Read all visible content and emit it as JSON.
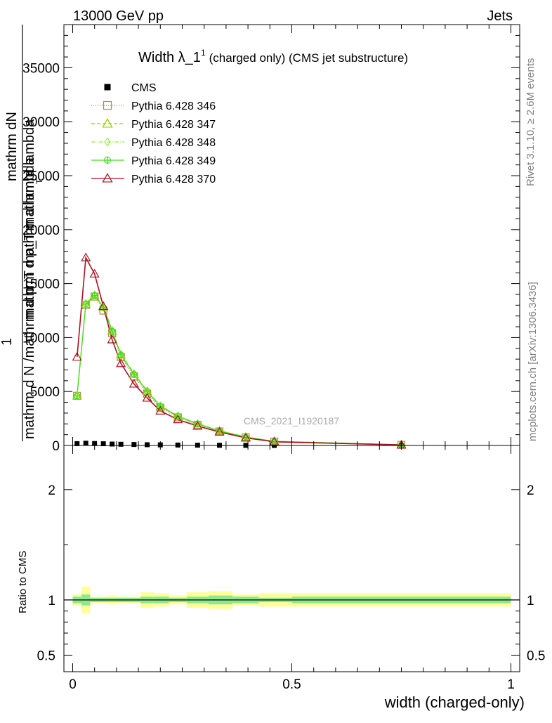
{
  "header": {
    "left": "13000 GeV pp",
    "right": "Jets",
    "side_rivet": "Rivet 3.1.10, ≥ 2.6M events",
    "side_mcplots": "mcplots.cern.ch [arXiv:1306.3436]",
    "watermark": "CMS_2021_I1920187"
  },
  "chart_data": [
    {
      "type": "line",
      "title_main": "Width λ_1",
      "title_sup": "1",
      "title_rest": "(charged only) (CMS jet substructure)",
      "ylabel_lines": [
        "mathrm d N /mathrm d p_T mathrm d lambda",
        "1",
        "mathrm dN",
        "mathrm d p_T mathrm d lambda",
        "T"
      ],
      "xlim": [
        -0.02,
        1.02
      ],
      "ylim": [
        0,
        39000
      ],
      "yticks": [
        0,
        5000,
        10000,
        15000,
        20000,
        25000,
        30000,
        35000
      ],
      "ytick_labels": [
        "0",
        "5000",
        "10000",
        "15000",
        "20000",
        "25000",
        "30000",
        "35000"
      ],
      "x": [
        0.01,
        0.03,
        0.05,
        0.07,
        0.09,
        0.11,
        0.14,
        0.17,
        0.2,
        0.24,
        0.285,
        0.335,
        0.395,
        0.46,
        0.75
      ],
      "series": [
        {
          "name": "CMS",
          "color": "#000000",
          "marker": "square-filled",
          "dash": "none",
          "values": [
            170,
            210,
            180,
            160,
            130,
            110,
            90,
            70,
            55,
            40,
            28,
            18,
            10,
            5,
            1
          ]
        },
        {
          "name": "Pythia 6.428 346",
          "color": "#b8864b",
          "marker": "square",
          "dash": "1,2",
          "values": [
            4600,
            13000,
            13800,
            12500,
            10400,
            8200,
            6400,
            4800,
            3500,
            2600,
            1900,
            1300,
            750,
            360,
            60
          ]
        },
        {
          "name": "Pythia 6.428 347",
          "color": "#99cc00",
          "marker": "triangle",
          "dash": "5,3",
          "values": [
            4600,
            13100,
            13900,
            12800,
            10600,
            8400,
            6600,
            5000,
            3600,
            2700,
            2000,
            1350,
            780,
            380,
            60
          ]
        },
        {
          "name": "Pythia 6.428 348",
          "color": "#99ee44",
          "marker": "diamond",
          "dash": "6,2,1,2",
          "values": [
            4700,
            13200,
            14000,
            12900,
            10700,
            8500,
            6700,
            5100,
            3700,
            2750,
            2050,
            1380,
            800,
            390,
            60
          ]
        },
        {
          "name": "Pythia 6.428 349",
          "color": "#44dd22",
          "marker": "circle-cross",
          "dash": "none",
          "values": [
            4600,
            13100,
            13900,
            12800,
            10600,
            8400,
            6600,
            5000,
            3650,
            2700,
            2000,
            1350,
            780,
            380,
            60
          ]
        },
        {
          "name": "Pythia 6.428 370",
          "color": "#aa1122",
          "marker": "triangle",
          "dash": "none",
          "values": [
            8200,
            17400,
            15900,
            12900,
            9800,
            7600,
            5700,
            4400,
            3200,
            2400,
            1800,
            1250,
            700,
            340,
            50
          ]
        }
      ]
    },
    {
      "type": "area",
      "ylabel": "Ratio to CMS",
      "xlabel": "width (charged-only)",
      "xlim": [
        -0.02,
        1.02
      ],
      "ylim": [
        0.35,
        2.4
      ],
      "yticks": [
        0.5,
        1,
        2
      ],
      "ytick_labels": [
        "0.5",
        "1",
        "2"
      ],
      "xticks": [
        0,
        0.5,
        1
      ],
      "xtick_labels": [
        "0",
        "0.5",
        "1"
      ],
      "bins": [
        0.0,
        0.02,
        0.04,
        0.06,
        0.08,
        0.1,
        0.125,
        0.155,
        0.185,
        0.22,
        0.26,
        0.31,
        0.365,
        0.425,
        0.5,
        1.0
      ],
      "band_inner": [
        0.03,
        0.05,
        0.02,
        0.02,
        0.02,
        0.02,
        0.02,
        0.03,
        0.03,
        0.02,
        0.03,
        0.04,
        0.03,
        0.02,
        0.03
      ],
      "band_outer": [
        0.05,
        0.12,
        0.03,
        0.03,
        0.04,
        0.03,
        0.03,
        0.07,
        0.06,
        0.04,
        0.07,
        0.08,
        0.05,
        0.06,
        0.06
      ],
      "inner_color": "#8ee88e",
      "outer_color": "#ffff99"
    }
  ]
}
